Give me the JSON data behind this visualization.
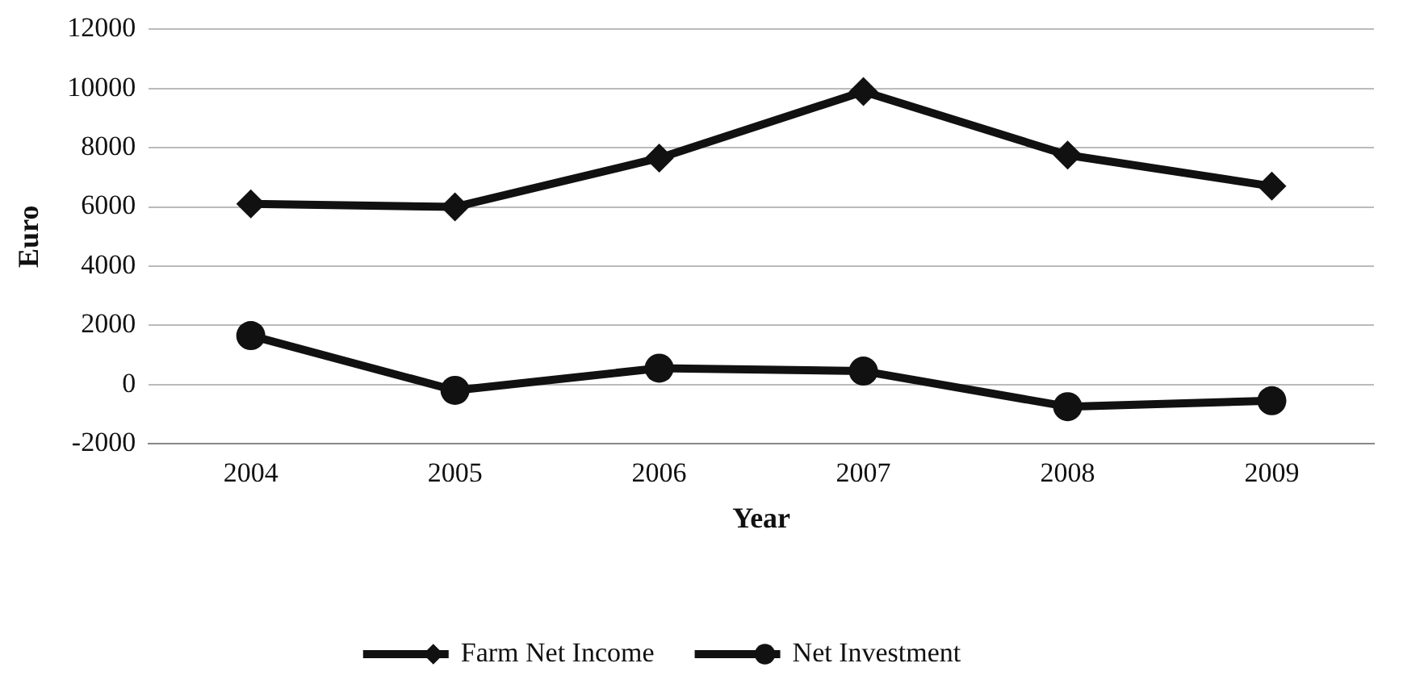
{
  "chart_data": {
    "type": "line",
    "xlabel": "Year",
    "ylabel": "Euro",
    "categories": [
      "2004",
      "2005",
      "2006",
      "2007",
      "2008",
      "2009"
    ],
    "series": [
      {
        "name": "Farm Net Income",
        "color": "#111111",
        "marker": "diamond",
        "values": [
          6100,
          6000,
          7650,
          9900,
          7750,
          6700
        ]
      },
      {
        "name": "Net Investment",
        "color": "#111111",
        "marker": "circle",
        "values": [
          1650,
          -200,
          550,
          450,
          -750,
          -550
        ]
      }
    ],
    "ylim": [
      -2000,
      12000
    ],
    "yticks": [
      -2000,
      0,
      2000,
      4000,
      6000,
      8000,
      10000,
      12000
    ],
    "grid": "y",
    "legend": "bottom",
    "line_style": "solid"
  }
}
